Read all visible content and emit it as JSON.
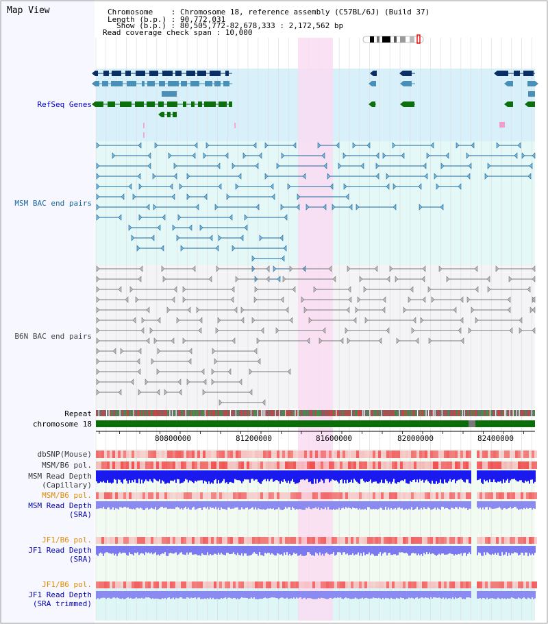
{
  "header": {
    "title": "Map View",
    "chromosome_label": "Chromosome    : ",
    "chromosome_value": "Chromosome 18, reference assembly (C57BL/6J) (Build 37)",
    "length_label": "Length (b.p.) : ",
    "length_value": "90,772,031",
    "show_label": "Show (b.p.) : ",
    "show_value": "80,505,772-82,678,333 : 2,172,562 bp",
    "coverage_label": "Read coverage check span : ",
    "coverage_value": "10,000"
  },
  "tracks": {
    "refseq": "RefSeq Genes",
    "msm_bac": "MSM BAC end pairs",
    "b6n_bac": "B6N BAC end pairs",
    "repeat": "Repeat",
    "chromosome": "chromosome 18",
    "dbsnp": "dbSNP(Mouse)",
    "msm_b6_pol_1": "MSM/B6 pol.",
    "msm_read_depth_cap_1": "MSM Read Depth",
    "msm_read_depth_cap_2": "(Capillary)",
    "msm_b6_pol_2": "MSM/B6 pol.",
    "msm_read_depth_sra_1": "MSM Read Depth",
    "msm_read_depth_sra_2": "(SRA)",
    "jf1_b6_pol_1": "JF1/B6 pol.",
    "jf1_read_depth_sra_1": "JF1 Read Depth",
    "jf1_read_depth_sra_2": "(SRA)",
    "jf1_b6_pol_2": "JF1/B6 pol.",
    "jf1_read_depth_trim_1": "JF1 Read Depth",
    "jf1_read_depth_trim_2": "(SRA trimmed)"
  },
  "axis": {
    "ticks": [
      "80800000",
      "81200000",
      "81600000",
      "82000000",
      "82400000"
    ]
  },
  "colors": {
    "refseq_label": "#0000cc",
    "msm_label": "#1a6699",
    "b6n_label": "#444444",
    "orange_label": "#e08a00",
    "blue_label": "#0000aa",
    "highlight": "#fadcf2"
  }
}
